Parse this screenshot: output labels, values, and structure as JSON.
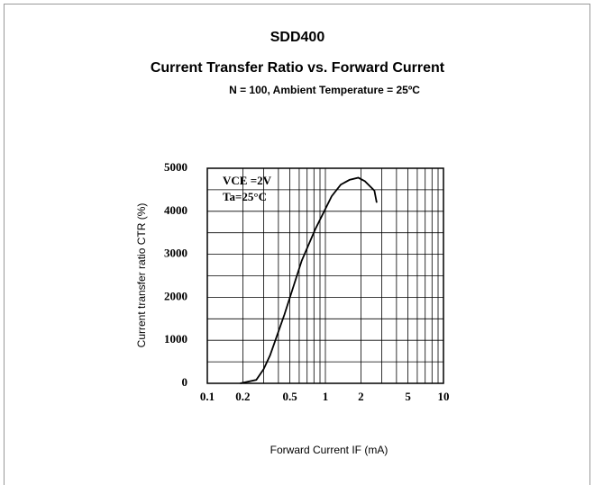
{
  "chart_data": {
    "type": "line",
    "title": "SDD400",
    "subtitle": "Current Transfer Ratio vs. Forward Current",
    "note": "N = 100, Ambient Temperature = 25ºC",
    "x_label": "Forward Current IF (mA)",
    "y_label": "Current transfer ratio CTR (%)",
    "annotations": [
      "VCE =2V",
      "Ta=25°C"
    ],
    "x_log": true,
    "xlim": [
      0.1,
      10
    ],
    "ylim": [
      0,
      5000
    ],
    "xticks": [
      0.1,
      0.2,
      0.5,
      1,
      2,
      5,
      10
    ],
    "yticks": [
      0,
      1000,
      2000,
      3000,
      4000,
      5000
    ],
    "xgrid": [
      0.1,
      0.2,
      0.3,
      0.4,
      0.5,
      0.6,
      0.7,
      0.8,
      0.9,
      1,
      2,
      3,
      4,
      5,
      6,
      7,
      8,
      9,
      10
    ],
    "ygrid": [
      0,
      500,
      1000,
      1500,
      2000,
      2500,
      3000,
      3500,
      4000,
      4500,
      5000
    ],
    "series": [
      {
        "color": "#000000",
        "x": [
          0.19,
          0.26,
          0.3,
          0.34,
          0.45,
          0.63,
          0.82,
          1.13,
          1.35,
          1.6,
          1.9,
          2.16,
          2.6,
          2.72
        ],
        "values": [
          0,
          80,
          330,
          650,
          1600,
          2850,
          3580,
          4350,
          4620,
          4730,
          4780,
          4700,
          4480,
          4200
        ]
      }
    ]
  }
}
